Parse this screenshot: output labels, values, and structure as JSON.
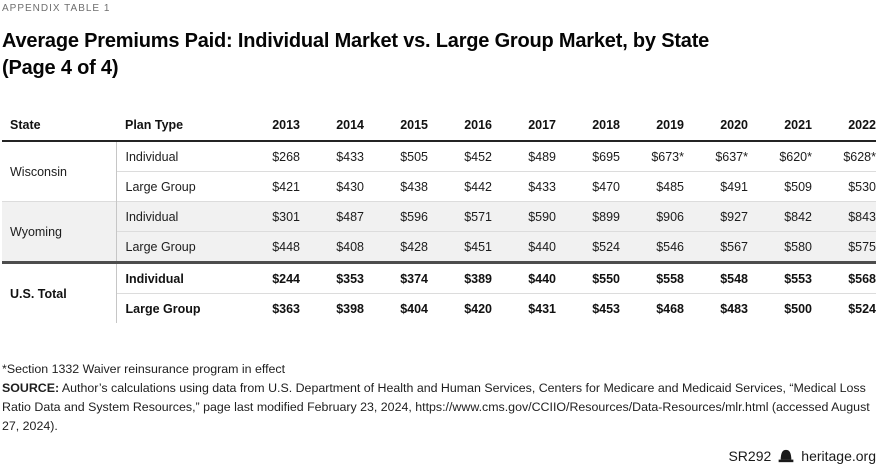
{
  "eyebrow": "APPENDIX TABLE 1",
  "title": {
    "line1": "Average Premiums Paid: Individual Market vs. Large Group Market, by State",
    "line2": "(Page 4 of 4)"
  },
  "chart_data": {
    "type": "table",
    "title": "Average Premiums Paid: Individual Market vs. Large Group Market, by State (Page 4 of 4)",
    "columns": [
      "State",
      "Plan Type",
      "2013",
      "2014",
      "2015",
      "2016",
      "2017",
      "2018",
      "2019",
      "2020",
      "2021",
      "2022"
    ],
    "groups": [
      {
        "state": "Wisconsin",
        "shaded": false,
        "bold": false,
        "rows": [
          {
            "plan_type": "Individual",
            "values": [
              "$268",
              "$433",
              "$505",
              "$452",
              "$489",
              "$695",
              "$673*",
              "$637*",
              "$620*",
              "$628*"
            ]
          },
          {
            "plan_type": "Large Group",
            "values": [
              "$421",
              "$430",
              "$438",
              "$442",
              "$433",
              "$470",
              "$485",
              "$491",
              "$509",
              "$530"
            ]
          }
        ]
      },
      {
        "state": "Wyoming",
        "shaded": true,
        "bold": false,
        "rows": [
          {
            "plan_type": "Individual",
            "values": [
              "$301",
              "$487",
              "$596",
              "$571",
              "$590",
              "$899",
              "$906",
              "$927",
              "$842",
              "$843"
            ]
          },
          {
            "plan_type": "Large Group",
            "values": [
              "$448",
              "$408",
              "$428",
              "$451",
              "$440",
              "$524",
              "$546",
              "$567",
              "$580",
              "$575"
            ]
          }
        ]
      },
      {
        "state": "U.S. Total",
        "shaded": false,
        "bold": true,
        "rows": [
          {
            "plan_type": "Individual",
            "values": [
              "$244",
              "$353",
              "$374",
              "$389",
              "$440",
              "$550",
              "$558",
              "$548",
              "$553",
              "$568"
            ]
          },
          {
            "plan_type": "Large Group",
            "values": [
              "$363",
              "$398",
              "$404",
              "$420",
              "$431",
              "$453",
              "$468",
              "$483",
              "$500",
              "$524"
            ]
          }
        ]
      }
    ]
  },
  "footnote": "*Section 1332 Waiver reinsurance program in effect",
  "source": {
    "label": "SOURCE:",
    "text": " Author’s calculations using data from U.S. Department of Health and Human Services, Centers for Medicare and Medicaid Services, “Medical Loss Ratio Data and System Resources,” page last modified February 23, 2024, https://www.cms.gov/CCIIO/Resources/Data-Resources/mlr.html (accessed August 27, 2024)."
  },
  "footer": {
    "report_id": "SR292",
    "logo_icon": "heritage-bell-icon",
    "site": "heritage.org"
  }
}
